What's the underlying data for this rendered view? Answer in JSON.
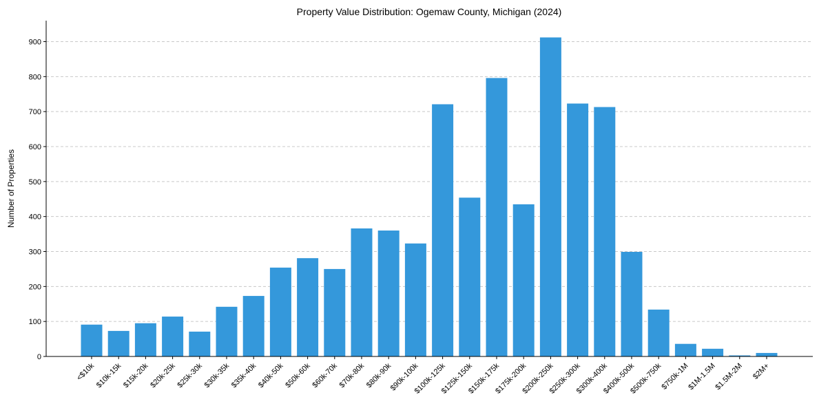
{
  "chart_data": {
    "type": "bar",
    "title": "Property Value Distribution: Ogemaw County, Michigan (2024)",
    "xlabel": "",
    "ylabel": "Number of Properties",
    "ylim": [
      0,
      960
    ],
    "yticks": [
      0,
      100,
      200,
      300,
      400,
      500,
      600,
      700,
      800,
      900
    ],
    "grid": "horizontal dashed",
    "bar_color": "#3498db",
    "categories": [
      "<$10k",
      "$10k-15k",
      "$15k-20k",
      "$20k-25k",
      "$25k-30k",
      "$30k-35k",
      "$35k-40k",
      "$40k-50k",
      "$50k-60k",
      "$60k-70k",
      "$70k-80k",
      "$80k-90k",
      "$90k-100k",
      "$100k-125k",
      "$125k-150k",
      "$150k-175k",
      "$175k-200k",
      "$200k-250k",
      "$250k-300k",
      "$300k-400k",
      "$400k-500k",
      "$500k-750k",
      "$750k-1M",
      "$1M-1.5M",
      "$1.5M-2M",
      "$2M+"
    ],
    "values": [
      91,
      73,
      95,
      114,
      71,
      142,
      173,
      254,
      281,
      250,
      366,
      360,
      323,
      721,
      454,
      796,
      435,
      912,
      723,
      713,
      299,
      134,
      36,
      22,
      3,
      10
    ]
  }
}
